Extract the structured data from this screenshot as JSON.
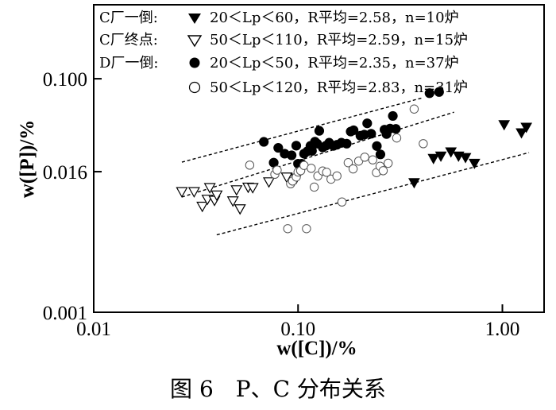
{
  "caption": "图 6　P、C 分布关系",
  "chart_data": {
    "type": "scatter",
    "title": "",
    "xlabel": "w([C])/%",
    "ylabel": "w([P])/%",
    "x_scale": "log",
    "y_scale": "log",
    "xlim": [
      0.01,
      1.6
    ],
    "ylim": [
      0.001,
      0.43
    ],
    "x_ticks": [
      0.01,
      0.1,
      1.0
    ],
    "x_tick_labels": [
      "0.01",
      "0.10",
      "1.00"
    ],
    "y_ticks": [
      0.001,
      0.016,
      0.1
    ],
    "y_tick_labels": [
      "0.001",
      "0.016",
      "0.100"
    ],
    "legend_position": "top-left",
    "series": [
      {
        "name": "C厂一倒:",
        "condition": "20＜Lp＜60，R平均=2.58，n=10炉",
        "marker": "filled-triangle-down",
        "points": [
          [
            0.37,
            0.0129
          ],
          [
            0.46,
            0.0208
          ],
          [
            0.5,
            0.0218
          ],
          [
            0.56,
            0.0237
          ],
          [
            0.61,
            0.0218
          ],
          [
            0.66,
            0.0212
          ],
          [
            0.73,
            0.0189
          ],
          [
            1.02,
            0.0405
          ],
          [
            1.24,
            0.0345
          ],
          [
            1.31,
            0.0385
          ]
        ]
      },
      {
        "name": "C厂终点:",
        "condition": "50＜Lp＜110，R平均=2.59，n=15炉",
        "marker": "open-triangle-down",
        "points": [
          [
            0.027,
            0.0108
          ],
          [
            0.031,
            0.0108
          ],
          [
            0.034,
            0.0081
          ],
          [
            0.036,
            0.0093
          ],
          [
            0.037,
            0.0117
          ],
          [
            0.039,
            0.0091
          ],
          [
            0.04,
            0.0101
          ],
          [
            0.048,
            0.009
          ],
          [
            0.05,
            0.0112
          ],
          [
            0.052,
            0.0077
          ],
          [
            0.057,
            0.0118
          ],
          [
            0.06,
            0.0117
          ],
          [
            0.072,
            0.0131
          ],
          [
            0.088,
            0.0144
          ],
          [
            0.098,
            0.0141
          ]
        ]
      },
      {
        "name": "D厂一倒:",
        "condition": "20＜Lp＜50，R平均=2.35，n=37炉",
        "marker": "filled-circle",
        "points": [
          [
            0.068,
            0.0288
          ],
          [
            0.076,
            0.0191
          ],
          [
            0.08,
            0.0256
          ],
          [
            0.086,
            0.0228
          ],
          [
            0.093,
            0.0221
          ],
          [
            0.098,
            0.0267
          ],
          [
            0.1,
            0.0187
          ],
          [
            0.104,
            0.0187
          ],
          [
            0.107,
            0.0228
          ],
          [
            0.111,
            0.0239
          ],
          [
            0.115,
            0.0266
          ],
          [
            0.117,
            0.0241
          ],
          [
            0.121,
            0.0289
          ],
          [
            0.124,
            0.0278
          ],
          [
            0.127,
            0.0358
          ],
          [
            0.132,
            0.0258
          ],
          [
            0.137,
            0.0267
          ],
          [
            0.142,
            0.0283
          ],
          [
            0.149,
            0.0266
          ],
          [
            0.155,
            0.0272
          ],
          [
            0.163,
            0.0283
          ],
          [
            0.173,
            0.0278
          ],
          [
            0.181,
            0.0353
          ],
          [
            0.187,
            0.0362
          ],
          [
            0.202,
            0.0325
          ],
          [
            0.211,
            0.0332
          ],
          [
            0.218,
            0.0415
          ],
          [
            0.228,
            0.0338
          ],
          [
            0.243,
            0.0265
          ],
          [
            0.253,
            0.0225
          ],
          [
            0.265,
            0.0366
          ],
          [
            0.271,
            0.0336
          ],
          [
            0.282,
            0.0374
          ],
          [
            0.291,
            0.048
          ],
          [
            0.301,
            0.0372
          ],
          [
            0.44,
            0.0752
          ],
          [
            0.49,
            0.077
          ]
        ]
      },
      {
        "name": "",
        "condition": "50＜Lp＜120，R平均=2.83，n=31炉",
        "marker": "open-circle",
        "points": [
          [
            0.058,
            0.0182
          ],
          [
            0.077,
            0.0152
          ],
          [
            0.079,
            0.0165
          ],
          [
            0.089,
            0.0052
          ],
          [
            0.092,
            0.0126
          ],
          [
            0.094,
            0.0133
          ],
          [
            0.098,
            0.0144
          ],
          [
            0.1,
            0.0159
          ],
          [
            0.103,
            0.0163
          ],
          [
            0.107,
            0.0181
          ],
          [
            0.11,
            0.0052
          ],
          [
            0.116,
            0.0171
          ],
          [
            0.12,
            0.0118
          ],
          [
            0.125,
            0.0147
          ],
          [
            0.132,
            0.0162
          ],
          [
            0.138,
            0.0158
          ],
          [
            0.145,
            0.0138
          ],
          [
            0.155,
            0.0147
          ],
          [
            0.164,
            0.0088
          ],
          [
            0.176,
            0.0191
          ],
          [
            0.186,
            0.0169
          ],
          [
            0.198,
            0.0197
          ],
          [
            0.212,
            0.0213
          ],
          [
            0.232,
            0.0202
          ],
          [
            0.242,
            0.0157
          ],
          [
            0.252,
            0.0178
          ],
          [
            0.261,
            0.0163
          ],
          [
            0.276,
            0.0189
          ],
          [
            0.304,
            0.0311
          ],
          [
            0.37,
            0.055
          ],
          [
            0.41,
            0.0278
          ]
        ]
      }
    ],
    "guide_lines": [
      {
        "style": "dashed",
        "from": [
          0.027,
          0.0193
        ],
        "to": [
          0.405,
          0.0685
        ]
      },
      {
        "style": "dashed",
        "from": [
          0.027,
          0.0097
        ],
        "to": [
          0.58,
          0.0517
        ]
      },
      {
        "style": "dashed",
        "from": [
          0.04,
          0.0046
        ],
        "to": [
          1.35,
          0.0233
        ]
      }
    ]
  }
}
